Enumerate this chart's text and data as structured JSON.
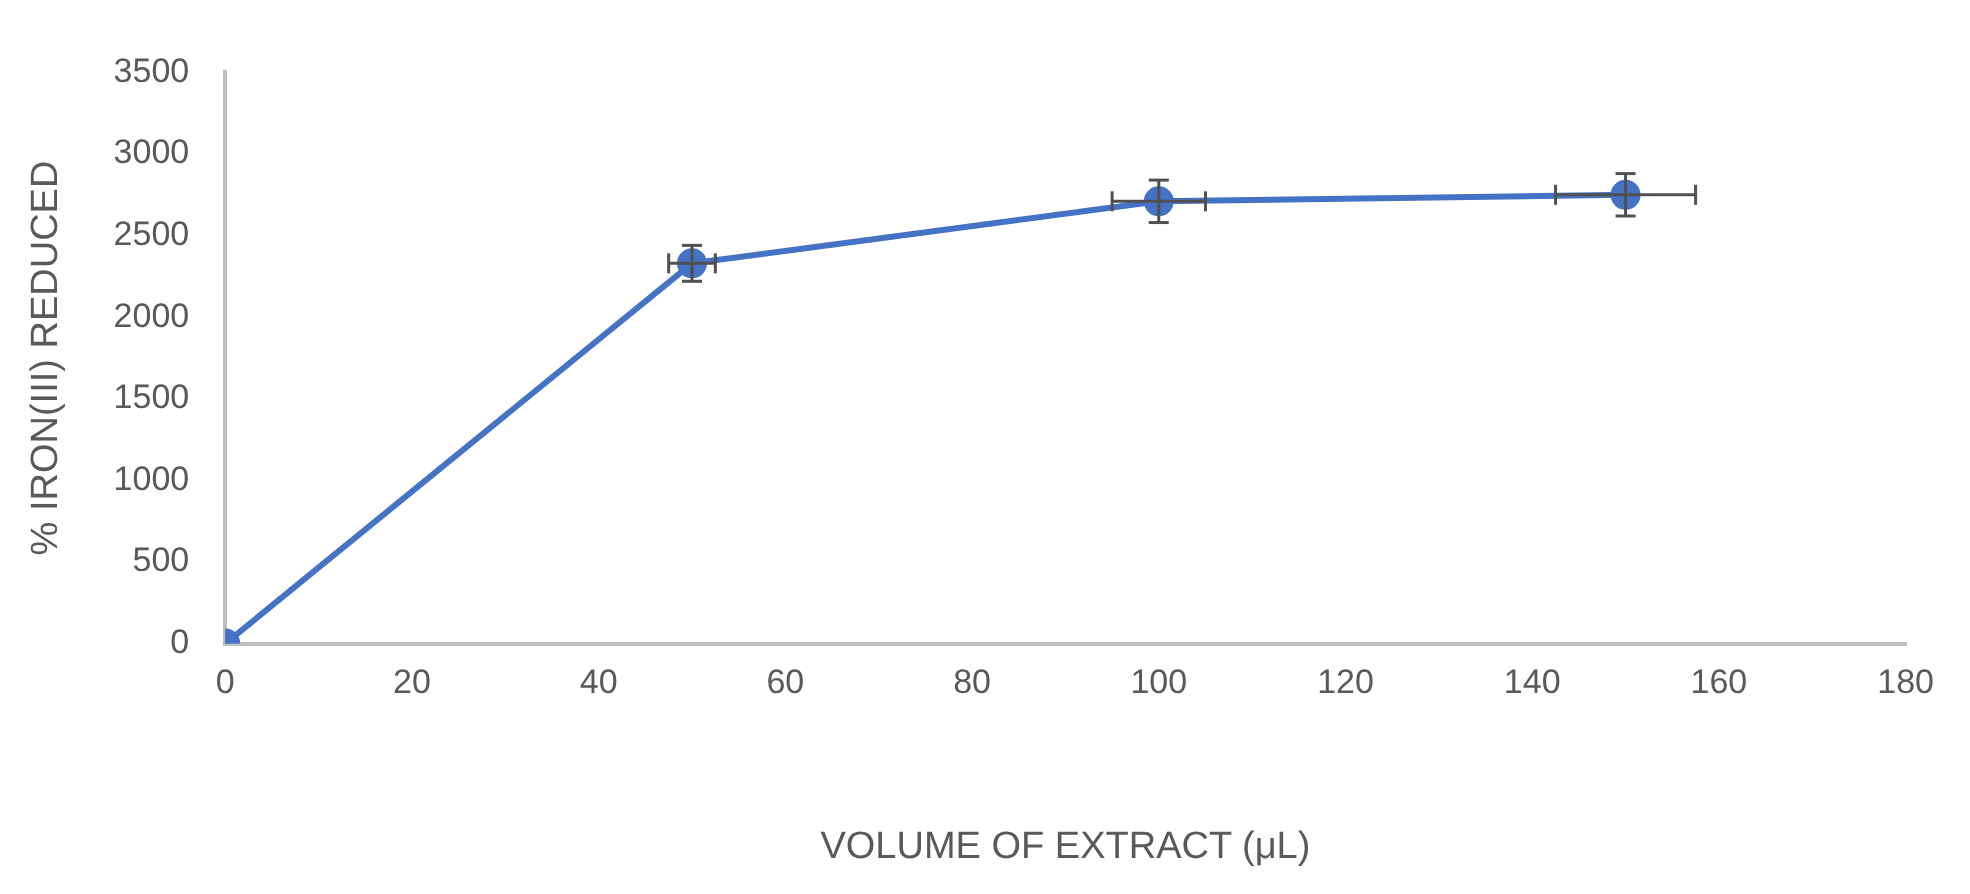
{
  "chart_data": {
    "type": "line",
    "xlabel": "VOLUME OF EXTRACT (μL)",
    "ylabel": "% IRON(III) REDUCED",
    "x": [
      0,
      50,
      100,
      150
    ],
    "series": [
      {
        "color": "#4472c4",
        "values": [
          0,
          2330,
          2710,
          2750
        ],
        "errors": [
          null,
          110,
          130,
          130
        ],
        "xerrors": [
          null,
          2.5,
          5,
          7.5
        ]
      }
    ],
    "xlim": [
      0,
      180
    ],
    "xticks": [
      0,
      20,
      40,
      60,
      80,
      100,
      120,
      140,
      160,
      180
    ],
    "ylim": [
      0,
      3500
    ],
    "yticks": [
      0,
      500,
      1000,
      1500,
      2000,
      2500,
      3000,
      3500
    ],
    "grid": false,
    "legend": false,
    "marker": "circle",
    "line_style": "solid"
  }
}
